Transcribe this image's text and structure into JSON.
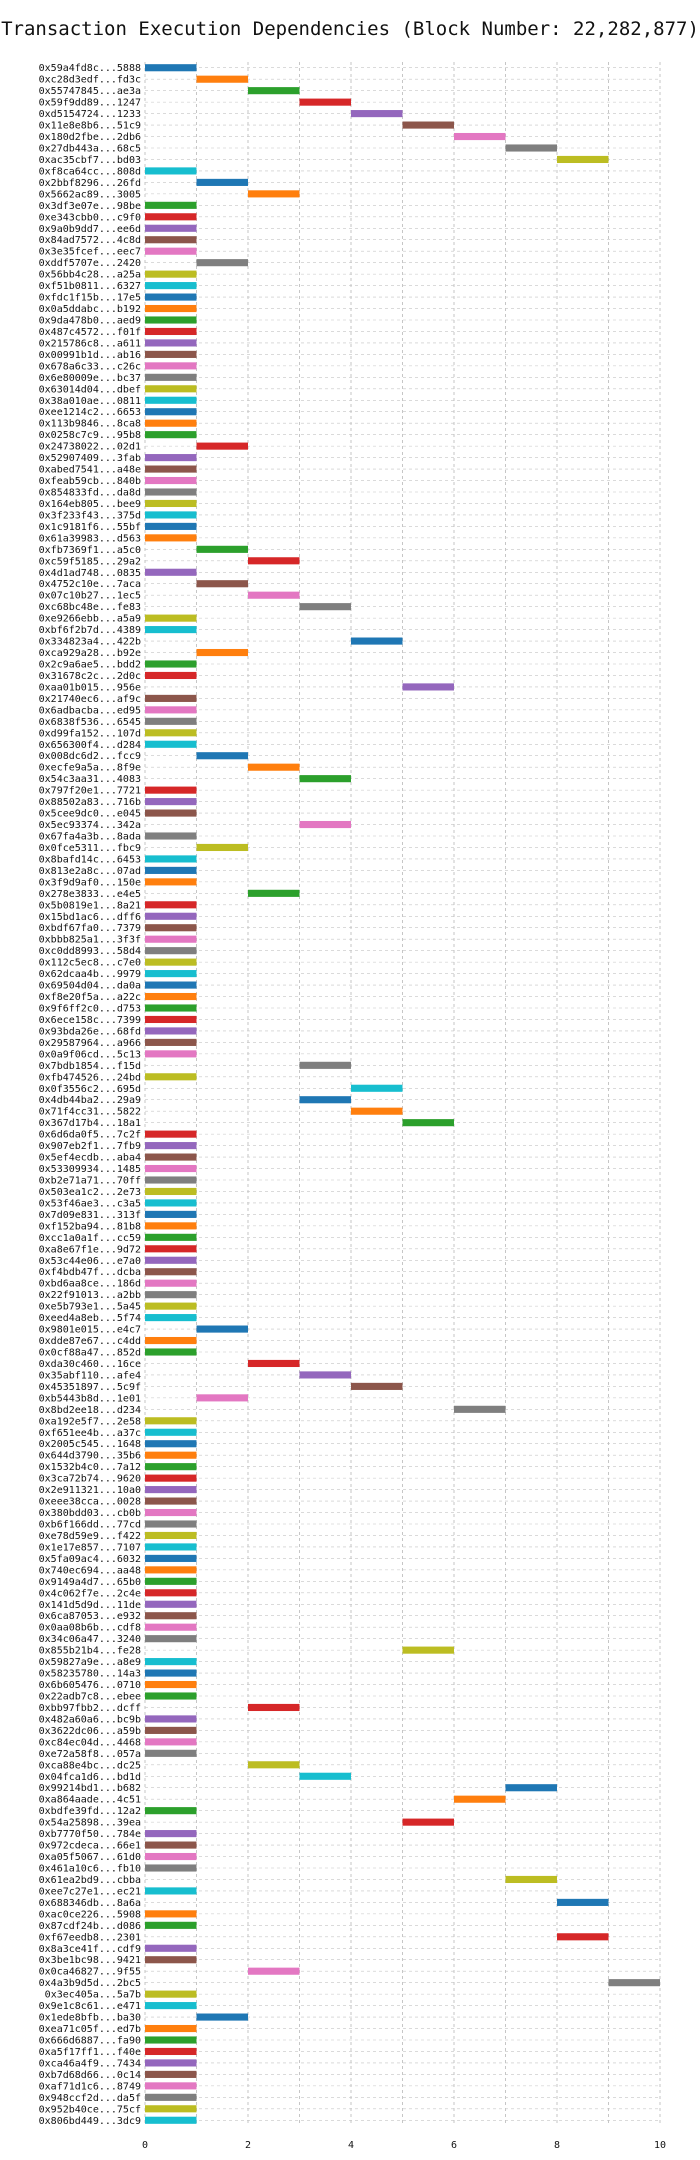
{
  "chart_data": {
    "type": "bar",
    "orientation": "horizontal",
    "title": "Transaction Execution Dependencies (Block Number: 22,282,877)",
    "xlabel": "",
    "ylabel": "",
    "xlim": [
      0,
      10
    ],
    "xticks": [
      0,
      2,
      4,
      6,
      8,
      10
    ],
    "grid": true,
    "legend": "none",
    "palette": [
      "#1f77b4",
      "#ff7f0e",
      "#2ca02c",
      "#d62728",
      "#9467bd",
      "#8c564b",
      "#e377c2",
      "#7f7f7f",
      "#bcbd22",
      "#17becf"
    ],
    "transactions": [
      {
        "hash": "0x59a4fd8c...5888",
        "start": 0
      },
      {
        "hash": "0xc28d3edf...fd3c",
        "start": 1
      },
      {
        "hash": "0x55747845...ae3a",
        "start": 2
      },
      {
        "hash": "0x59f9dd89...1247",
        "start": 3
      },
      {
        "hash": "0xd5154724...1233",
        "start": 4
      },
      {
        "hash": "0x11e8e8b6...51c9",
        "start": 5
      },
      {
        "hash": "0x180d2fbe...2db6",
        "start": 6
      },
      {
        "hash": "0x27db443a...68c5",
        "start": 7
      },
      {
        "hash": "0xac35cbf7...bd03",
        "start": 8
      },
      {
        "hash": "0xf8ca64cc...808d",
        "start": 0
      },
      {
        "hash": "0x2bbf8296...26fd",
        "start": 1
      },
      {
        "hash": "0x5662ac89...3005",
        "start": 2
      },
      {
        "hash": "0x3df3e07e...98be",
        "start": 0
      },
      {
        "hash": "0xe343cbb0...c9f0",
        "start": 0
      },
      {
        "hash": "0x9a0b9dd7...ee6d",
        "start": 0
      },
      {
        "hash": "0x84ad7572...4c8d",
        "start": 0
      },
      {
        "hash": "0x3e35fcef...eec7",
        "start": 0
      },
      {
        "hash": "0xddf5707e...2420",
        "start": 1
      },
      {
        "hash": "0x56bb4c28...a25a",
        "start": 0
      },
      {
        "hash": "0xf51b0811...6327",
        "start": 0
      },
      {
        "hash": "0xfdc1f15b...17e5",
        "start": 0
      },
      {
        "hash": "0x0a5ddabc...b192",
        "start": 0
      },
      {
        "hash": "0x9da478b0...aed9",
        "start": 0
      },
      {
        "hash": "0x487c4572...f01f",
        "start": 0
      },
      {
        "hash": "0x215786c8...a611",
        "start": 0
      },
      {
        "hash": "0x00991b1d...ab16",
        "start": 0
      },
      {
        "hash": "0x678a6c33...c26c",
        "start": 0
      },
      {
        "hash": "0x6e80009e...bc37",
        "start": 0
      },
      {
        "hash": "0x63014d04...dbef",
        "start": 0
      },
      {
        "hash": "0x38a010ae...0811",
        "start": 0
      },
      {
        "hash": "0xee1214c2...6653",
        "start": 0
      },
      {
        "hash": "0x113b9846...8ca8",
        "start": 0
      },
      {
        "hash": "0x0258c7c9...95b8",
        "start": 0
      },
      {
        "hash": "0x24738022...02d1",
        "start": 1
      },
      {
        "hash": "0x52907409...3fab",
        "start": 0
      },
      {
        "hash": "0xabed7541...a48e",
        "start": 0
      },
      {
        "hash": "0xfeab59cb...840b",
        "start": 0
      },
      {
        "hash": "0x854833fd...da8d",
        "start": 0
      },
      {
        "hash": "0x164eb805...bee9",
        "start": 0
      },
      {
        "hash": "0x3f233f43...375d",
        "start": 0
      },
      {
        "hash": "0x1c9181f6...55bf",
        "start": 0
      },
      {
        "hash": "0x61a39983...d563",
        "start": 0
      },
      {
        "hash": "0xfb7369f1...a5c0",
        "start": 1
      },
      {
        "hash": "0xc59f5185...29a2",
        "start": 2
      },
      {
        "hash": "0x4d1ad748...0835",
        "start": 0
      },
      {
        "hash": "0x4752c10e...7aca",
        "start": 1
      },
      {
        "hash": "0x07c10b27...1ec5",
        "start": 2
      },
      {
        "hash": "0xc68bc48e...fe83",
        "start": 3
      },
      {
        "hash": "0xe9266ebb...a5a9",
        "start": 0
      },
      {
        "hash": "0xbf6f2b7d...4389",
        "start": 0
      },
      {
        "hash": "0x334823a4...422b",
        "start": 4
      },
      {
        "hash": "0xca929a28...b92e",
        "start": 1
      },
      {
        "hash": "0x2c9a6ae5...bdd2",
        "start": 0
      },
      {
        "hash": "0x31678c2c...2d0c",
        "start": 0
      },
      {
        "hash": "0xaa01b015...956e",
        "start": 5
      },
      {
        "hash": "0x21740ec6...af9c",
        "start": 0
      },
      {
        "hash": "0x6adbacba...ed95",
        "start": 0
      },
      {
        "hash": "0x6838f536...6545",
        "start": 0
      },
      {
        "hash": "0xd99fa152...107d",
        "start": 0
      },
      {
        "hash": "0x656300f4...d284",
        "start": 0
      },
      {
        "hash": "0x008dc6d2...fcc9",
        "start": 1
      },
      {
        "hash": "0xecfe9a5a...8f9e",
        "start": 2
      },
      {
        "hash": "0x54c3aa31...4083",
        "start": 3
      },
      {
        "hash": "0x797f20e1...7721",
        "start": 0
      },
      {
        "hash": "0x88502a83...716b",
        "start": 0
      },
      {
        "hash": "0x5cee9dc0...e045",
        "start": 0
      },
      {
        "hash": "0x5ec93374...342a",
        "start": 3
      },
      {
        "hash": "0x67fa4a3b...8ada",
        "start": 0
      },
      {
        "hash": "0x0fce5311...fbc9",
        "start": 1
      },
      {
        "hash": "0x8bafd14c...6453",
        "start": 0
      },
      {
        "hash": "0x813e2a8c...07ad",
        "start": 0
      },
      {
        "hash": "0x3f9d9af0...150e",
        "start": 0
      },
      {
        "hash": "0x278e3833...e4e5",
        "start": 2
      },
      {
        "hash": "0x5b0819e1...8a21",
        "start": 0
      },
      {
        "hash": "0x15bd1ac6...dff6",
        "start": 0
      },
      {
        "hash": "0xbdf67fa0...7379",
        "start": 0
      },
      {
        "hash": "0xbbb825a1...3f3f",
        "start": 0
      },
      {
        "hash": "0xc0dd8993...58d4",
        "start": 0
      },
      {
        "hash": "0x112c5ec8...c7e0",
        "start": 0
      },
      {
        "hash": "0x62dcaa4b...9979",
        "start": 0
      },
      {
        "hash": "0x69504d04...da0a",
        "start": 0
      },
      {
        "hash": "0xf8e20f5a...a22c",
        "start": 0
      },
      {
        "hash": "0x9f6ff2c0...d753",
        "start": 0
      },
      {
        "hash": "0x6ece158c...7399",
        "start": 0
      },
      {
        "hash": "0x93bda26e...68fd",
        "start": 0
      },
      {
        "hash": "0x29587964...a966",
        "start": 0
      },
      {
        "hash": "0x0a9f06cd...5c13",
        "start": 0
      },
      {
        "hash": "0x7bdb1854...f15d",
        "start": 3
      },
      {
        "hash": "0xfb474526...24bd",
        "start": 0
      },
      {
        "hash": "0x0f3556c2...695d",
        "start": 4
      },
      {
        "hash": "0x4db44ba2...29a9",
        "start": 3
      },
      {
        "hash": "0x71f4cc31...5822",
        "start": 4
      },
      {
        "hash": "0x367d17b4...18a1",
        "start": 5
      },
      {
        "hash": "0x6d6da0f5...7c2f",
        "start": 0
      },
      {
        "hash": "0x907eb2f1...7fb9",
        "start": 0
      },
      {
        "hash": "0x5ef4ecdb...aba4",
        "start": 0
      },
      {
        "hash": "0x53309934...1485",
        "start": 0
      },
      {
        "hash": "0xb2e71a71...70ff",
        "start": 0
      },
      {
        "hash": "0x503ea1c2...2e73",
        "start": 0
      },
      {
        "hash": "0x53f46ae3...c3a5",
        "start": 0
      },
      {
        "hash": "0x7d09e831...313f",
        "start": 0
      },
      {
        "hash": "0xf152ba94...81b8",
        "start": 0
      },
      {
        "hash": "0xcc1a0a1f...cc59",
        "start": 0
      },
      {
        "hash": "0xa8e67f1e...9d72",
        "start": 0
      },
      {
        "hash": "0x53c44e06...e7a0",
        "start": 0
      },
      {
        "hash": "0xf4bdb47f...dcba",
        "start": 0
      },
      {
        "hash": "0xbd6aa8ce...186d",
        "start": 0
      },
      {
        "hash": "0x22f91013...a2bb",
        "start": 0
      },
      {
        "hash": "0xe5b793e1...5a45",
        "start": 0
      },
      {
        "hash": "0xeed4a8eb...5f74",
        "start": 0
      },
      {
        "hash": "0x9801e015...e4c7",
        "start": 1
      },
      {
        "hash": "0xdde87e67...c4dd",
        "start": 0
      },
      {
        "hash": "0x0cf88a47...852d",
        "start": 0
      },
      {
        "hash": "0xda30c460...16ce",
        "start": 2
      },
      {
        "hash": "0x35abf110...afe4",
        "start": 3
      },
      {
        "hash": "0x45351897...5c9f",
        "start": 4
      },
      {
        "hash": "0xb5443b8d...1e01",
        "start": 1
      },
      {
        "hash": "0x8bd2ee18...d234",
        "start": 6
      },
      {
        "hash": "0xa192e5f7...2e58",
        "start": 0
      },
      {
        "hash": "0xf651ee4b...a37c",
        "start": 0
      },
      {
        "hash": "0x2005c545...1648",
        "start": 0
      },
      {
        "hash": "0x644d3790...35b6",
        "start": 0
      },
      {
        "hash": "0x1532b4c0...7a12",
        "start": 0
      },
      {
        "hash": "0x3ca72b74...9620",
        "start": 0
      },
      {
        "hash": "0x2e911321...10a0",
        "start": 0
      },
      {
        "hash": "0xeee38cca...0028",
        "start": 0
      },
      {
        "hash": "0x380bdd03...cb0b",
        "start": 0
      },
      {
        "hash": "0xb6f166dd...77cd",
        "start": 0
      },
      {
        "hash": "0xe78d59e9...f422",
        "start": 0
      },
      {
        "hash": "0x1e17e857...7107",
        "start": 0
      },
      {
        "hash": "0x5fa09ac4...6032",
        "start": 0
      },
      {
        "hash": "0x740ec694...aa48",
        "start": 0
      },
      {
        "hash": "0x9149a4d7...65b0",
        "start": 0
      },
      {
        "hash": "0x4c062f7e...2c4e",
        "start": 0
      },
      {
        "hash": "0x141d5d9d...11de",
        "start": 0
      },
      {
        "hash": "0x6ca87053...e932",
        "start": 0
      },
      {
        "hash": "0x0aa08b6b...cdf8",
        "start": 0
      },
      {
        "hash": "0x34c06a47...3240",
        "start": 0
      },
      {
        "hash": "0x855b21b4...fe28",
        "start": 5
      },
      {
        "hash": "0x59827a9e...a8e9",
        "start": 0
      },
      {
        "hash": "0x58235780...14a3",
        "start": 0
      },
      {
        "hash": "0x6b605476...0710",
        "start": 0
      },
      {
        "hash": "0x22adb7c8...ebee",
        "start": 0
      },
      {
        "hash": "0xbb97fbb2...dcff",
        "start": 2
      },
      {
        "hash": "0x482a60a6...bc9b",
        "start": 0
      },
      {
        "hash": "0x3622dc06...a59b",
        "start": 0
      },
      {
        "hash": "0xc84ec04d...4468",
        "start": 0
      },
      {
        "hash": "0xe72a58f8...057a",
        "start": 0
      },
      {
        "hash": "0xca88e4bc...dc25",
        "start": 2
      },
      {
        "hash": "0x04fca1d6...bd1d",
        "start": 3
      },
      {
        "hash": "0x99214bd1...b682",
        "start": 7
      },
      {
        "hash": "0xa864aade...4c51",
        "start": 6
      },
      {
        "hash": "0xbdfe39fd...12a2",
        "start": 0
      },
      {
        "hash": "0x54a25898...39ea",
        "start": 5
      },
      {
        "hash": "0xb7770f50...784e",
        "start": 0
      },
      {
        "hash": "0x972cdeca...66e1",
        "start": 0
      },
      {
        "hash": "0xa05f5067...61d0",
        "start": 0
      },
      {
        "hash": "0x461a10c6...fb10",
        "start": 0
      },
      {
        "hash": "0x61ea2bd9...cbba",
        "start": 7
      },
      {
        "hash": "0xee7c27e1...ec21",
        "start": 0
      },
      {
        "hash": "0x688346db...8a6a",
        "start": 8
      },
      {
        "hash": "0xac0ce226...5908",
        "start": 0
      },
      {
        "hash": "0x87cdf24b...d086",
        "start": 0
      },
      {
        "hash": "0xf67eedb8...2301",
        "start": 8
      },
      {
        "hash": "0x8a3ce41f...cdf9",
        "start": 0
      },
      {
        "hash": "0x3be1bc98...9421",
        "start": 0
      },
      {
        "hash": "0x0ca46827...9f55",
        "start": 2
      },
      {
        "hash": "0x4a3b9d5d...2bc5",
        "start": 9
      },
      {
        "hash": "0x3ec405a...5a7b",
        "start": 0
      },
      {
        "hash": "0x9e1c8c61...e471",
        "start": 0
      },
      {
        "hash": "0x1ede8bfb...ba30",
        "start": 1
      },
      {
        "hash": "0xea71c05f...ed7b",
        "start": 0
      },
      {
        "hash": "0x666d6887...fa90",
        "start": 0
      },
      {
        "hash": "0xa5f17ff1...f40e",
        "start": 0
      },
      {
        "hash": "0xca46a4f9...7434",
        "start": 0
      },
      {
        "hash": "0xb7d68d66...0c14",
        "start": 0
      },
      {
        "hash": "0xaf71d1c6...8749",
        "start": 0
      },
      {
        "hash": "0x948ccf2d...da5f",
        "start": 0
      },
      {
        "hash": "0x952b40ce...75cf",
        "start": 0
      },
      {
        "hash": "0x806bd449...3dc9",
        "start": 0
      }
    ]
  }
}
